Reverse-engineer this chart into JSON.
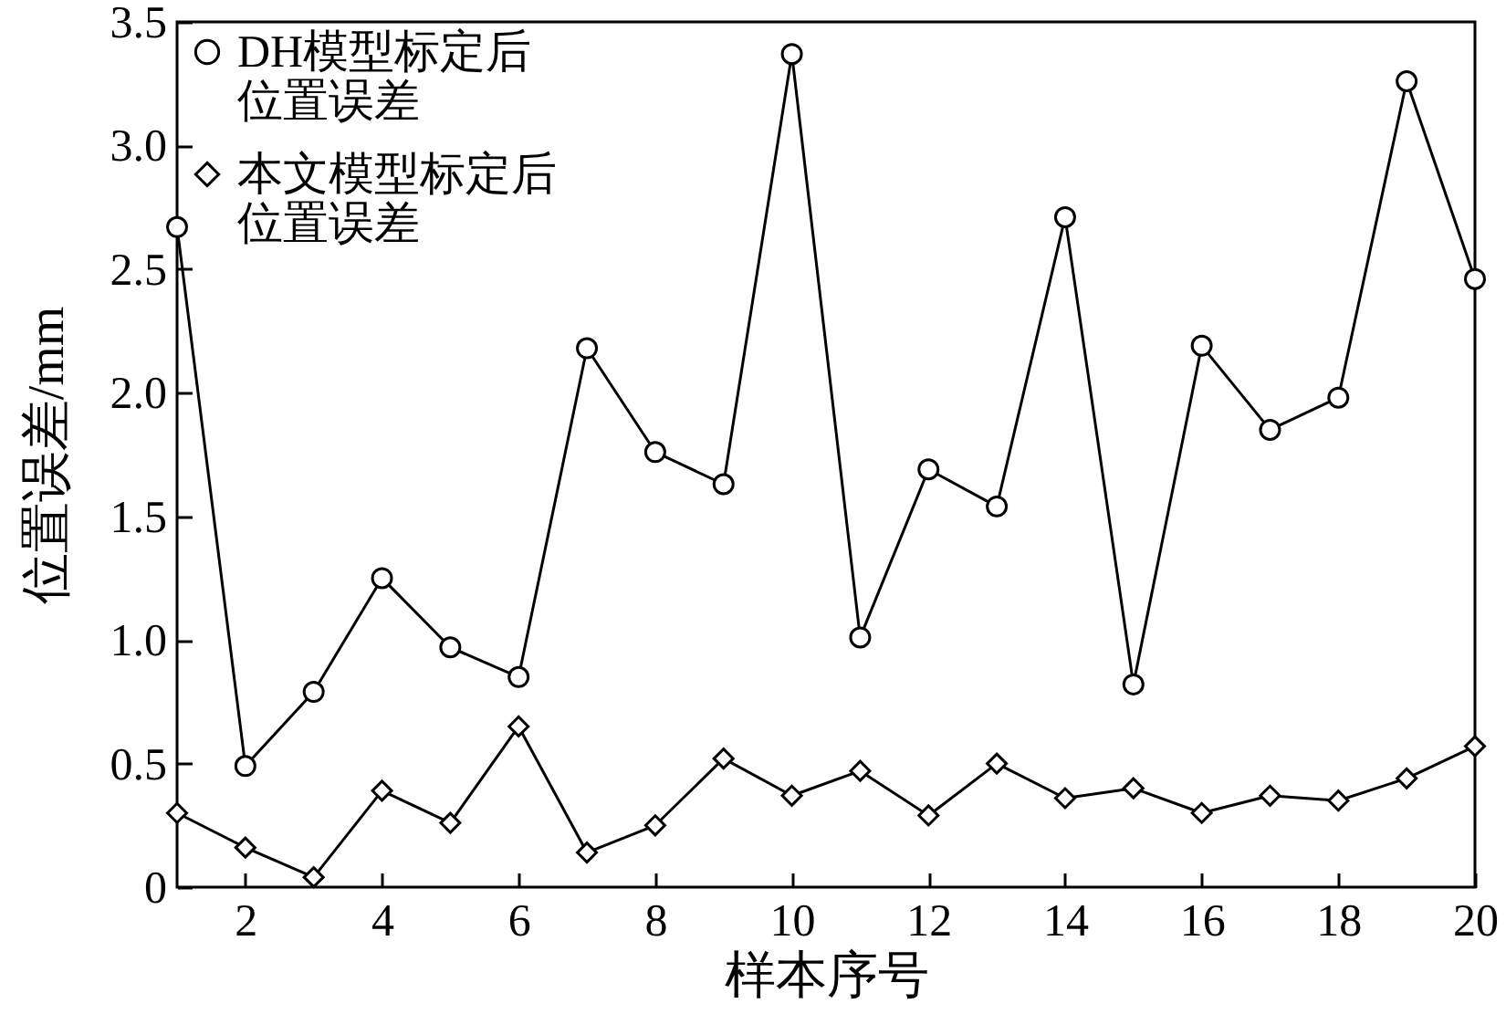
{
  "chart_data": {
    "type": "line",
    "xlabel": "样本序号",
    "ylabel": "位置误差/mm",
    "x": [
      1,
      2,
      3,
      4,
      5,
      6,
      7,
      8,
      9,
      10,
      11,
      12,
      13,
      14,
      15,
      16,
      17,
      18,
      19,
      20
    ],
    "series": [
      {
        "name": "DH模型标定后位置误差",
        "color": "#000000",
        "marker": "circle",
        "values": [
          2.67,
          0.49,
          0.79,
          1.25,
          0.97,
          0.85,
          2.18,
          1.76,
          1.63,
          3.37,
          1.01,
          1.69,
          1.54,
          2.71,
          0.82,
          2.19,
          1.85,
          1.98,
          3.26,
          2.46
        ]
      },
      {
        "name": "本文模型标定后位置误差",
        "color": "#000000",
        "marker": "diamond",
        "values": [
          0.3,
          0.16,
          0.04,
          0.39,
          0.26,
          0.65,
          0.14,
          0.25,
          0.52,
          0.37,
          0.47,
          0.29,
          0.5,
          0.36,
          0.4,
          0.3,
          0.37,
          0.35,
          0.44,
          0.57
        ]
      }
    ],
    "xlim": [
      1,
      20
    ],
    "xticks": [
      2,
      4,
      6,
      8,
      10,
      12,
      14,
      16,
      18,
      20
    ],
    "ylim": [
      0,
      3.5
    ],
    "yticks": [
      0,
      0.5,
      {
        "value": 1,
        "label": "1.0"
      },
      {
        "value": 1.5,
        "label": "1.5"
      },
      {
        "value": 2,
        "label": "2.0"
      },
      {
        "value": 2.5,
        "label": "2.5"
      },
      {
        "value": 3,
        "label": "3.0"
      },
      {
        "value": 3.5,
        "label": "3.5"
      }
    ],
    "legend": "top left",
    "line_style": "solid",
    "grid": false
  }
}
